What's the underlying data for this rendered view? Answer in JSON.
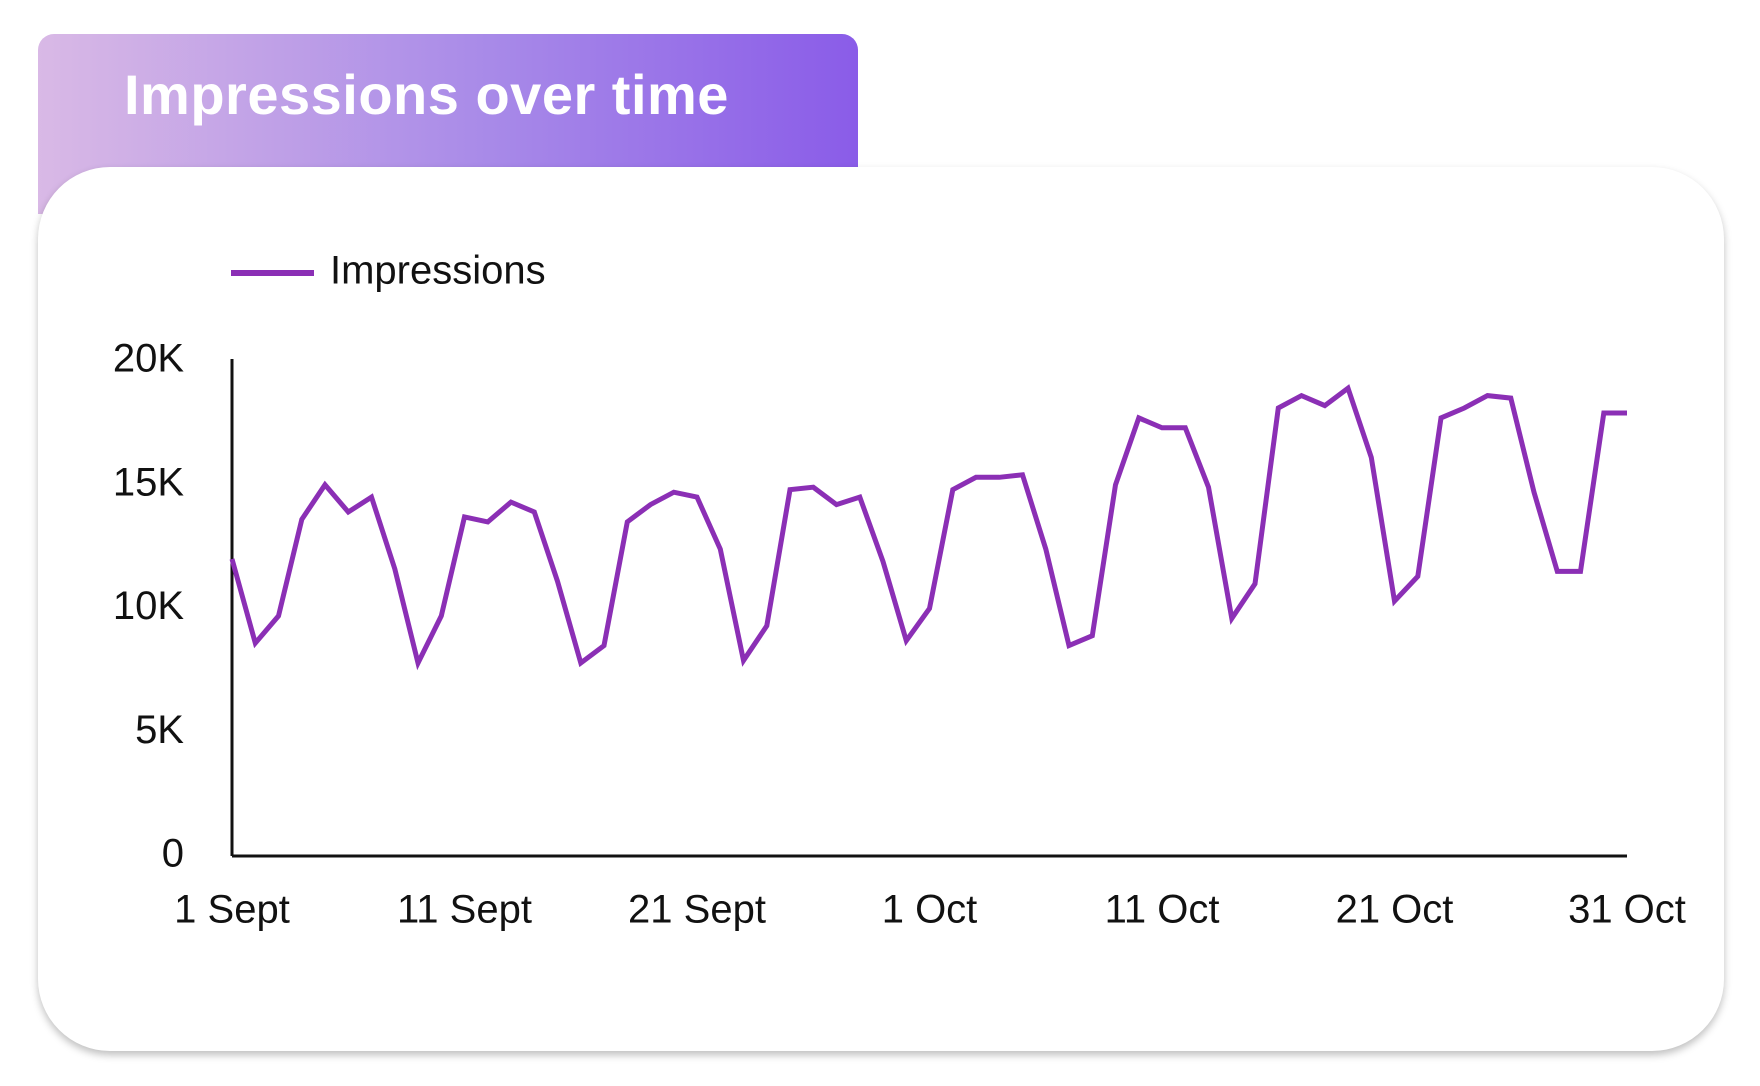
{
  "chart_data": {
    "type": "line",
    "title": "Impressions over time",
    "categories": [
      "1 Sept",
      null,
      null,
      null,
      null,
      null,
      null,
      null,
      null,
      null,
      "11 Sept",
      null,
      null,
      null,
      null,
      null,
      null,
      null,
      null,
      null,
      "21 Sept",
      null,
      null,
      null,
      null,
      null,
      null,
      null,
      null,
      null,
      "1 Oct",
      null,
      null,
      null,
      null,
      null,
      null,
      null,
      null,
      null,
      "11 Oct",
      null,
      null,
      null,
      null,
      null,
      null,
      null,
      null,
      null,
      "21 Oct",
      null,
      null,
      null,
      null,
      null,
      null,
      null,
      null,
      null,
      "31 Oct"
    ],
    "series": [
      {
        "name": "Impressions",
        "color": "#8b2fb5",
        "values": [
          12000,
          8600,
          9700,
          13600,
          15000,
          13900,
          14500,
          11600,
          7800,
          9700,
          13700,
          13500,
          14300,
          13900,
          11100,
          7800,
          8500,
          13500,
          14200,
          14700,
          14500,
          12400,
          7900,
          9300,
          14800,
          14900,
          14200,
          14500,
          11900,
          8700,
          10000,
          14800,
          15300,
          15300,
          15400,
          12400,
          8500,
          8900,
          15000,
          17700,
          17300,
          17300,
          14900,
          9600,
          11000,
          18100,
          18600,
          18200,
          18900,
          16100,
          10300,
          11300,
          17700,
          18100,
          18600,
          18500,
          14700,
          11500,
          11500,
          17900,
          17900
        ]
      }
    ],
    "ylim": [
      0,
      20000
    ],
    "yticks": [
      0,
      {
        "value": 5000,
        "label": "5K"
      },
      {
        "value": 10000,
        "label": "10K"
      },
      {
        "value": 15000,
        "label": "15K"
      },
      {
        "value": 20000,
        "label": "20K"
      }
    ],
    "grid": false,
    "legend": "top"
  }
}
